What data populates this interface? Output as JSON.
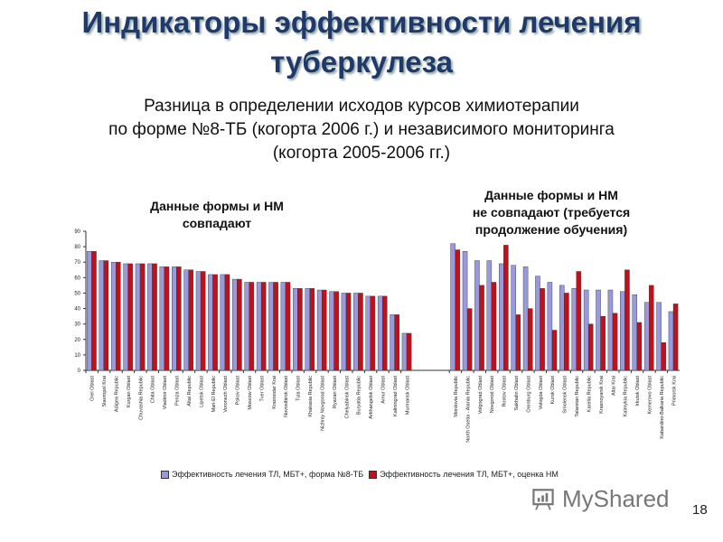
{
  "slide": {
    "title_line1": "Индикаторы эффективности лечения",
    "title_line2": "туберкулеза",
    "subtitle_line1": "Разница в определении исходов курсов химиотерапии",
    "subtitle_line2": "по форме №8-ТБ (когорта 2006 г.) и независимого мониторинга",
    "subtitle_line3": "(когорта 2005-2006 гг.)",
    "annotation_left_line1": "Данные формы и НМ",
    "annotation_left_line2": "совпадают",
    "annotation_right_line1": "Данные формы и НМ",
    "annotation_right_line2": "не совпадают (требуется",
    "annotation_right_line3": "продолжение обучения)",
    "logo_text": "MyShared",
    "page_number": "18"
  },
  "chart_data": {
    "type": "bar",
    "ylim": [
      0,
      90
    ],
    "yticks": [
      0,
      10,
      20,
      30,
      40,
      50,
      60,
      70,
      80,
      90
    ],
    "grid": false,
    "legend_position": "bottom",
    "colors": {
      "form": "#9999dd",
      "monitoring": "#c0101a"
    },
    "groups": [
      {
        "categories": [
          "Orel Oblast",
          "Stavropol Krai",
          "Adigea Republic",
          "Kurgan Oblast",
          "Chuvashia Republic",
          "Chita Oblast",
          "Vladimir Oblast",
          "Penza Oblast",
          "Altai Republic",
          "Lipetsk Oblast",
          "Mari-El Republic",
          "Voronezh Oblast",
          "Pskov Oblast",
          "Moscow Oblast",
          "Tver Oblast",
          "Krasnodar Krai",
          "Novosibirsk Oblast",
          "Tula Oblast",
          "Khakasia Republic",
          "Nizhniy Novgorod Oblast",
          "Ryazan Oblast",
          "Chelyabinsk Oblast",
          "Buryatia Republic",
          "Arkhangelsk Oblast",
          "Amur Oblast",
          "Kaliningrad Oblast",
          "Murmansk Oblast"
        ],
        "form": [
          77,
          71,
          70,
          69,
          69,
          69,
          67,
          67,
          65,
          64,
          62,
          62,
          59,
          57,
          57,
          57,
          57,
          53,
          53,
          52,
          51,
          50,
          50,
          48,
          48,
          36,
          24
        ],
        "monitoring": [
          77,
          71,
          70,
          69,
          69,
          69,
          67,
          67,
          65,
          64,
          62,
          62,
          59,
          57,
          57,
          57,
          57,
          53,
          53,
          52,
          51,
          50,
          50,
          48,
          48,
          36,
          24
        ]
      },
      {
        "categories": [
          "Mordovia Republic",
          "North Osetia - Alania Republic",
          "Volgograd Oblast",
          "Novgorod Oblast",
          "Rostov Oblast",
          "Sakhalin Oblast",
          "Orenburg Oblast",
          "Vologda Oblast",
          "Kursk Oblast",
          "Smolensk Oblast",
          "Tatarstan Republic",
          "Karelia Republic",
          "Krasnoyarsk Krai",
          "Altai Krai",
          "Kalmykia Republic",
          "Irkutsk Oblast",
          "Kemerovo Oblast",
          "Kabardino-Balkaria Republic",
          "Primorsk Krai"
        ],
        "form": [
          82,
          77,
          71,
          71,
          69,
          68,
          67,
          61,
          57,
          55,
          53,
          52,
          52,
          52,
          51,
          49,
          44,
          44,
          38
        ],
        "monitoring": [
          78,
          40,
          55,
          57,
          81,
          36,
          40,
          53,
          26,
          50,
          64,
          30,
          35,
          37,
          65,
          31,
          55,
          18,
          43
        ]
      }
    ],
    "series": [
      {
        "name": "Эффективность лечения ТЛ, МБТ+, форма №8-ТБ",
        "key": "form"
      },
      {
        "name": "Эффективность лечения ТЛ, МБТ+, оценка НМ",
        "key": "monitoring"
      }
    ]
  }
}
